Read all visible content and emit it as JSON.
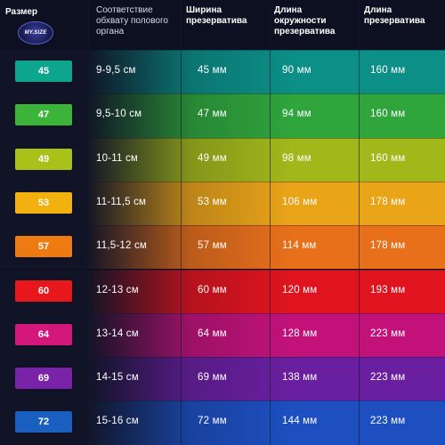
{
  "header": {
    "size_label": "Размер",
    "logo_text": "MY.SIZE",
    "girth_label": "Соответствие обхвату полового органа",
    "width_label": "Ширина презерватива",
    "circumference_label": "Длина окружности презерватива",
    "length_label": "Длина презерватива"
  },
  "rows": [
    {
      "size": "45",
      "girth": "9-9,5 см",
      "width": "45 мм",
      "circumference": "90 мм",
      "length": "160 мм",
      "badge_color": "#0ea58e",
      "row_color": "#0b8f86"
    },
    {
      "size": "47",
      "girth": "9,5-10 см",
      "width": "47 мм",
      "circumference": "94 мм",
      "length": "160 мм",
      "badge_color": "#3cb43a",
      "row_color": "#2fa53c"
    },
    {
      "size": "49",
      "girth": "10-11 см",
      "width": "49 мм",
      "circumference": "98 мм",
      "length": "160 мм",
      "badge_color": "#a8c21a",
      "row_color": "#a2b81a"
    },
    {
      "size": "53",
      "girth": "11-11,5 см",
      "width": "53 мм",
      "circumference": "106 мм",
      "length": "178 мм",
      "badge_color": "#f2b10f",
      "row_color": "#eaa418"
    },
    {
      "size": "57",
      "girth": "11,5-12 см",
      "width": "57 мм",
      "circumference": "114 мм",
      "length": "178 мм",
      "badge_color": "#ee7a12",
      "row_color": "#e8701a"
    },
    {
      "size": "60",
      "girth": "12-13 см",
      "width": "60 мм",
      "circumference": "120 мм",
      "length": "193 мм",
      "badge_color": "#e8171c",
      "row_color": "#e0141e"
    },
    {
      "size": "64",
      "girth": "13-14 см",
      "width": "64 мм",
      "circumference": "128 мм",
      "length": "223 мм",
      "badge_color": "#d4177a",
      "row_color": "#c2127a"
    },
    {
      "size": "69",
      "girth": "14-15 см",
      "width": "69 мм",
      "circumference": "138 мм",
      "length": "223 мм",
      "badge_color": "#7b23a8",
      "row_color": "#6a1fa0"
    },
    {
      "size": "72",
      "girth": "15-16 см",
      "width": "72 мм",
      "circumference": "144 мм",
      "length": "223 мм",
      "badge_color": "#1a5fbf",
      "row_color": "#1d4fc0"
    }
  ]
}
